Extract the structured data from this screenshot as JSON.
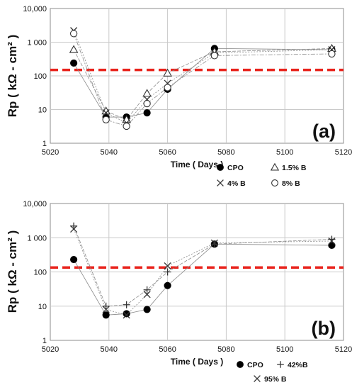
{
  "chart_data": [
    {
      "type": "scatter",
      "panel_label": "(a)",
      "xlabel": "Time  ( Days )",
      "ylabel": "Rp  ( kΩ - cm² )",
      "xlim": [
        5020,
        5120
      ],
      "ylim": [
        1,
        10000
      ],
      "yscale": "log",
      "x_ticks": [
        "5020",
        "5040",
        "5060",
        "5080",
        "5100",
        "5120"
      ],
      "y_ticks": [
        "1",
        "10",
        "100",
        "1 000",
        "10,000"
      ],
      "grid": true,
      "threshold": 150,
      "series": [
        {
          "name": "CPO",
          "marker": "filled-circle",
          "x": [
            5028,
            5039,
            5046,
            5053,
            5060,
            5076,
            5116
          ],
          "y": [
            240,
            6,
            6,
            8,
            40,
            650,
            600
          ]
        },
        {
          "name": "1.5% B",
          "marker": "triangle",
          "x": [
            5028,
            5039,
            5046,
            5053,
            5060,
            5076,
            5116
          ],
          "y": [
            600,
            9,
            5,
            30,
            120,
            520,
            650
          ]
        },
        {
          "name": "4% B",
          "marker": "x",
          "x": [
            5028,
            5039,
            5046,
            5053,
            5060,
            5076,
            5116
          ],
          "y": [
            2200,
            8,
            4,
            20,
            60,
            480,
            600
          ]
        },
        {
          "name": "8% B",
          "marker": "open-circle",
          "x": [
            5028,
            5039,
            5046,
            5053,
            5060,
            5076,
            5116
          ],
          "y": [
            1800,
            5,
            3.2,
            15,
            45,
            400,
            450
          ]
        }
      ],
      "legend": [
        [
          "CPO",
          "1.5% B"
        ],
        [
          "4% B",
          "8% B"
        ]
      ]
    },
    {
      "type": "scatter",
      "panel_label": "(b)",
      "xlabel": "Time  ( Days )",
      "ylabel": "Rp  ( kΩ - cm² )",
      "xlim": [
        5020,
        5120
      ],
      "ylim": [
        1,
        10000
      ],
      "yscale": "log",
      "x_ticks": [
        "5020",
        "5040",
        "5060",
        "5080",
        "5100",
        "5120"
      ],
      "y_ticks": [
        "1",
        "10",
        "100",
        "1 000",
        "10,000"
      ],
      "grid": true,
      "threshold": 135,
      "series": [
        {
          "name": "CPO",
          "marker": "filled-circle",
          "x": [
            5028,
            5039,
            5046,
            5053,
            5060,
            5076,
            5116
          ],
          "y": [
            230,
            5.5,
            6,
            8,
            40,
            650,
            600
          ]
        },
        {
          "name": "42%B",
          "marker": "plus",
          "x": [
            5028,
            5039,
            5046,
            5053,
            5060,
            5076,
            5116
          ],
          "y": [
            2200,
            10,
            11,
            30,
            100,
            650,
            900
          ]
        },
        {
          "name": "95% B",
          "marker": "x",
          "x": [
            5028,
            5039,
            5046,
            5053,
            5060,
            5076,
            5116
          ],
          "y": [
            1800,
            8,
            5.5,
            22,
            150,
            700,
            800
          ]
        }
      ],
      "legend": [
        [
          "CPO",
          "42%B"
        ],
        [
          "95% B"
        ]
      ]
    }
  ]
}
